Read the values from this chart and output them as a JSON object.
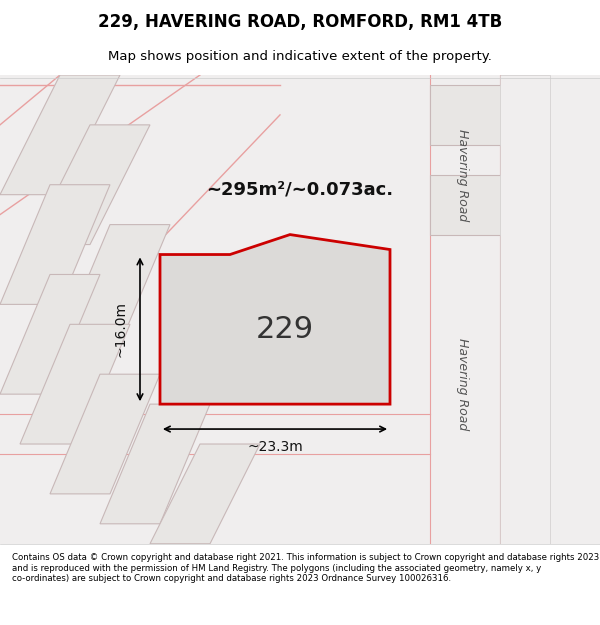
{
  "title": "229, HAVERING ROAD, ROMFORD, RM1 4TB",
  "subtitle": "Map shows position and indicative extent of the property.",
  "footer": "Contains OS data © Crown copyright and database right 2021. This information is subject to Crown copyright and database rights 2023 and is reproduced with the permission of HM Land Registry. The polygons (including the associated geometry, namely x, y co-ordinates) are subject to Crown copyright and database rights 2023 Ordnance Survey 100026316.",
  "area_label": "~295m²/~0.073ac.",
  "plot_number": "229",
  "dim_width": "~23.3m",
  "dim_height": "~16.0m",
  "bg_color": "#f0eeec",
  "map_bg": "#f5f3f0",
  "highlight_fill": "#e8e6e3",
  "highlight_edge": "#cc0000",
  "road_label_1": "Havering Road",
  "road_label_2": "Havering Road",
  "neighbor_fill": "#e8e6e3",
  "neighbor_edge": "#c8c4c0"
}
